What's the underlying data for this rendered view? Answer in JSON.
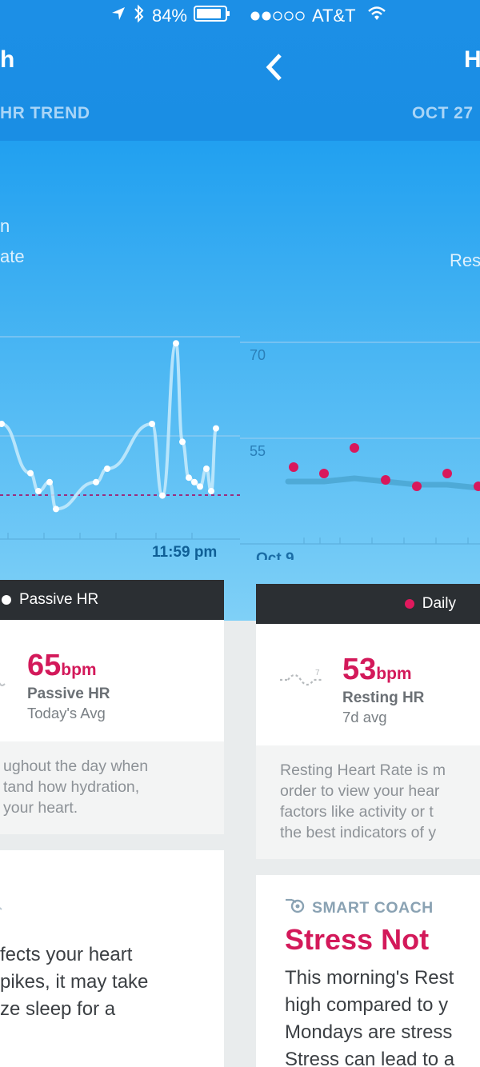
{
  "status_bar": {
    "battery_percent": "84%",
    "carrier": "AT&T",
    "signal_strength": "2 of 5 dots",
    "icons": [
      "location-arrow-icon",
      "bluetooth-icon",
      "battery-icon",
      "signal-dots-icon",
      "wifi-icon"
    ]
  },
  "left_panel": {
    "title_fragment": "h",
    "subtitle_fragment": "HR TREND",
    "hero_line1": "n",
    "hero_line2": "ate",
    "chart_time_label": "11:59 pm",
    "legend_label": "Passive HR",
    "metric_value": "65",
    "metric_unit": "bpm",
    "metric_label": "Passive HR",
    "metric_sub": "Today's Avg",
    "desc_lines": [
      "ughout the day when",
      "tand how hydration,",
      "your heart."
    ],
    "coach_lines": [
      "fects your heart",
      "pikes, it may take",
      "ze sleep for a"
    ]
  },
  "right_panel": {
    "title_fragment": "H",
    "subtitle_fragment": "OCT 27",
    "hero_fragment": "Res",
    "legend_label": "Daily",
    "metric_value": "53",
    "metric_unit": "bpm",
    "metric_label": "Resting HR",
    "metric_sub": "7d avg",
    "desc_lines": [
      "Resting Heart Rate is m",
      "order to view your hear",
      "factors like activity or t",
      "the best indicators of y"
    ],
    "coach_kicker": "SMART COACH",
    "coach_title": "Stress Not",
    "coach_lines": [
      "This morning's Rest",
      "high compared to y",
      "Mondays are stress",
      "Stress can lead to a"
    ]
  },
  "chart_data": [
    {
      "type": "line",
      "title": "",
      "series": [
        {
          "values": [
            60,
            49,
            45,
            47,
            41,
            47,
            50,
            60,
            44,
            78,
            56,
            48,
            47,
            46,
            50,
            45,
            59
          ]
        }
      ],
      "reference_line_style": "dashed magenta",
      "x_tick_labels": [
        "11:59 pm"
      ],
      "grid": true,
      "colors": {
        "line": "#c8ebfb",
        "point": "#ffffff",
        "reference": "#9a2f7f"
      }
    },
    {
      "type": "scatter",
      "title": "",
      "y_tick_labels": [
        "70",
        "55"
      ],
      "ylim": [
        40,
        70
      ],
      "x_tick_labels": [
        "Oct 9"
      ],
      "series": [
        {
          "name": "Daily",
          "values": [
            52,
            51,
            55,
            50,
            49,
            51,
            49
          ]
        },
        {
          "values": [
            50,
            50,
            50.5,
            50,
            49.5,
            49.5,
            49
          ]
        }
      ],
      "grid": true,
      "colors": {
        "point": "#d8185c",
        "trend": "#4eaad7"
      }
    }
  ]
}
